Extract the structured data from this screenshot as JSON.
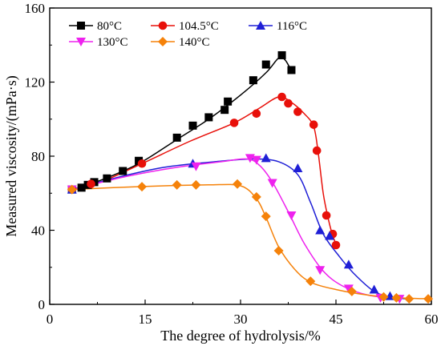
{
  "chart_data": {
    "type": "scatter",
    "title": "",
    "xlabel": "The degree of hydrolysis/%",
    "ylabel": "Measured viscosity/(mPa·s)",
    "xlim": [
      0,
      60
    ],
    "ylim": [
      0,
      160
    ],
    "xticks": [
      0,
      15,
      30,
      45,
      60
    ],
    "yticks": [
      0,
      40,
      80,
      120,
      160
    ],
    "grid": false,
    "legend_position": "top-left",
    "series": [
      {
        "name": "80°C",
        "color": "#000000",
        "marker": "square",
        "points": [
          [
            3.5,
            62
          ],
          [
            5,
            63
          ],
          [
            6,
            64.5
          ],
          [
            7,
            66
          ],
          [
            9,
            68
          ],
          [
            11.5,
            72
          ],
          [
            14,
            77.5
          ],
          [
            20,
            90
          ],
          [
            22.5,
            96.5
          ],
          [
            25,
            101
          ],
          [
            27.5,
            105
          ],
          [
            28,
            109.5
          ],
          [
            32,
            121
          ],
          [
            34,
            129.5
          ],
          [
            36.5,
            134.5
          ],
          [
            38,
            126.5
          ]
        ],
        "curve": [
          [
            3.5,
            62
          ],
          [
            8,
            67
          ],
          [
            14,
            76
          ],
          [
            20,
            89
          ],
          [
            25,
            100
          ],
          [
            30,
            113
          ],
          [
            34,
            125
          ],
          [
            36,
            133
          ],
          [
            37,
            132
          ],
          [
            38,
            126
          ]
        ]
      },
      {
        "name": "104.5°C",
        "color": "#e8100a",
        "marker": "circle",
        "points": [
          [
            3.5,
            62
          ],
          [
            6.5,
            65
          ],
          [
            14.5,
            76
          ],
          [
            29,
            98
          ],
          [
            32.5,
            103
          ],
          [
            36.5,
            112
          ],
          [
            37.5,
            108.5
          ],
          [
            39,
            104
          ],
          [
            41.5,
            97
          ],
          [
            42,
            83
          ],
          [
            43.5,
            48
          ],
          [
            44.5,
            38
          ],
          [
            45,
            32
          ]
        ],
        "curve": [
          [
            3.5,
            62
          ],
          [
            8,
            66
          ],
          [
            14.5,
            76
          ],
          [
            22,
            88
          ],
          [
            29,
            98
          ],
          [
            33,
            106
          ],
          [
            36,
            112
          ],
          [
            38,
            109
          ],
          [
            40,
            103
          ],
          [
            41.5,
            96
          ],
          [
            42.2,
            82
          ],
          [
            43,
            60
          ],
          [
            43.8,
            46
          ],
          [
            44.5,
            37
          ],
          [
            45.2,
            31
          ]
        ]
      },
      {
        "name": "116°C",
        "color": "#1f1fd6",
        "marker": "triangle-up",
        "points": [
          [
            3.5,
            62
          ],
          [
            22.5,
            76
          ],
          [
            34,
            79
          ],
          [
            39,
            73.5
          ],
          [
            42.5,
            40
          ],
          [
            44,
            37
          ],
          [
            47,
            21.5
          ],
          [
            51,
            8
          ],
          [
            53.5,
            4.5
          ]
        ],
        "curve": [
          [
            3.5,
            62
          ],
          [
            10,
            68
          ],
          [
            18,
            74
          ],
          [
            26,
            77
          ],
          [
            32,
            78.5
          ],
          [
            36,
            77
          ],
          [
            39,
            70
          ],
          [
            41,
            55
          ],
          [
            43,
            38
          ],
          [
            45.5,
            26
          ],
          [
            48,
            16
          ],
          [
            51,
            7
          ],
          [
            53.5,
            4
          ],
          [
            56,
            3
          ]
        ]
      },
      {
        "name": "130°C",
        "color": "#ee22ee",
        "marker": "triangle-down",
        "points": [
          [
            3.5,
            62
          ],
          [
            23,
            74.5
          ],
          [
            31.5,
            79
          ],
          [
            32.5,
            78
          ],
          [
            35,
            65.5
          ],
          [
            38,
            48
          ],
          [
            42.5,
            18.5
          ],
          [
            47,
            8.5
          ],
          [
            52,
            3.5
          ],
          [
            55,
            3
          ]
        ],
        "curve": [
          [
            3.5,
            62
          ],
          [
            12,
            69
          ],
          [
            20,
            74
          ],
          [
            27,
            77
          ],
          [
            31,
            78.5
          ],
          [
            33,
            75
          ],
          [
            35,
            66
          ],
          [
            37.5,
            50
          ],
          [
            40,
            33
          ],
          [
            43,
            18
          ],
          [
            46,
            10
          ],
          [
            50,
            5
          ],
          [
            55,
            3
          ]
        ]
      },
      {
        "name": "140°C",
        "color": "#f5820a",
        "marker": "diamond",
        "points": [
          [
            3.5,
            62
          ],
          [
            14.5,
            63.5
          ],
          [
            20,
            64.5
          ],
          [
            23,
            64.5
          ],
          [
            29.5,
            65
          ],
          [
            32.5,
            58
          ],
          [
            34,
            47.5
          ],
          [
            36,
            29
          ],
          [
            41,
            12.5
          ],
          [
            47.5,
            7
          ],
          [
            52.5,
            4
          ],
          [
            54.5,
            3.5
          ],
          [
            56.5,
            3
          ],
          [
            59.5,
            3
          ]
        ],
        "curve": [
          [
            3.5,
            62
          ],
          [
            10,
            63
          ],
          [
            18,
            64
          ],
          [
            25,
            64.5
          ],
          [
            30,
            64
          ],
          [
            32.5,
            57
          ],
          [
            34,
            47
          ],
          [
            36,
            31
          ],
          [
            38.5,
            19
          ],
          [
            41,
            12
          ],
          [
            45,
            8
          ],
          [
            50,
            5
          ],
          [
            55,
            3.5
          ],
          [
            60,
            3
          ]
        ]
      }
    ]
  }
}
